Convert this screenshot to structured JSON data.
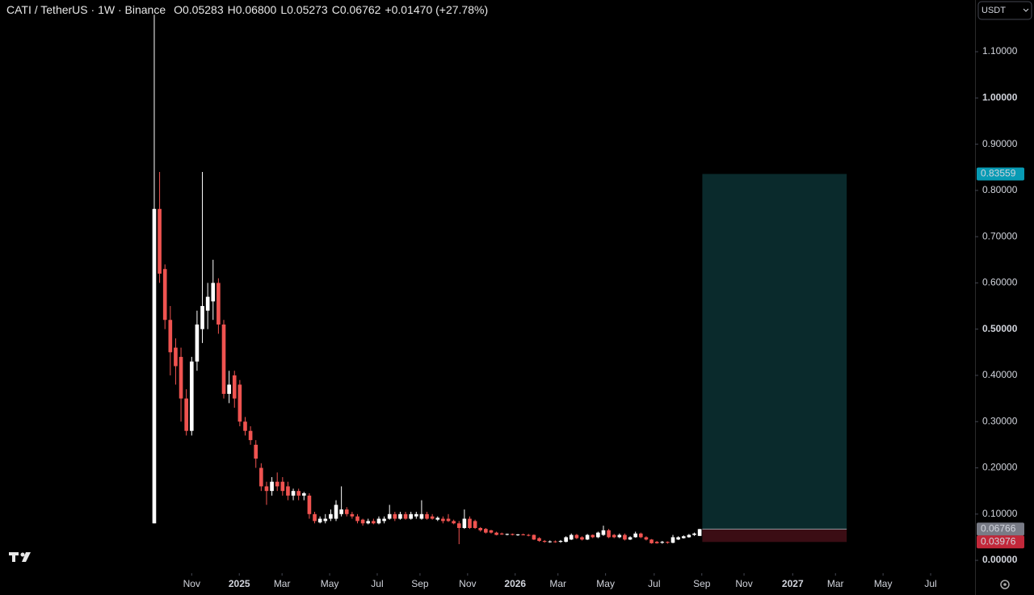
{
  "chart_data": {
    "type": "candlestick",
    "title": "CATI / TetherUS · 1W · Binance",
    "ohlc": [
      "O0.05283",
      "H0.06800",
      "L0.05273",
      "C0.06762",
      "+0.01470 (+27.78%)"
    ],
    "currency": "USDT",
    "up_color": "#ffffff",
    "down_color": "#ef5350",
    "ylim": [
      -0.0278,
      1.2118
    ],
    "yticks": [
      {
        "value": 0,
        "label": "0.00000"
      },
      {
        "value": 0.1,
        "label": "0.10000"
      },
      {
        "value": 0.2,
        "label": "0.20000"
      },
      {
        "value": 0.3,
        "label": "0.30000"
      },
      {
        "value": 0.4,
        "label": "0.40000"
      },
      {
        "value": 0.5,
        "label": "0.50000"
      },
      {
        "value": 0.6,
        "label": "0.60000"
      },
      {
        "value": 0.7,
        "label": "0.70000"
      },
      {
        "value": 0.8,
        "label": "0.80000"
      },
      {
        "value": 0.9,
        "label": "0.90000"
      },
      {
        "value": 1,
        "label": "1.00000"
      },
      {
        "value": 1.1,
        "label": "1.10000"
      }
    ],
    "xlim": [
      -28.85,
      153.5
    ],
    "xticks": [
      {
        "value": 7,
        "label": "Nov"
      },
      {
        "value": 15.9,
        "label": "2025"
      },
      {
        "value": 23.9,
        "label": "Mar"
      },
      {
        "value": 32.8,
        "label": "May"
      },
      {
        "value": 41.7,
        "label": "Jul"
      },
      {
        "value": 49.7,
        "label": "Sep"
      },
      {
        "value": 58.6,
        "label": "Nov"
      },
      {
        "value": 67.5,
        "label": "2026"
      },
      {
        "value": 75.5,
        "label": "Mar"
      },
      {
        "value": 84.4,
        "label": "May"
      },
      {
        "value": 93.5,
        "label": "Jul"
      },
      {
        "value": 102.4,
        "label": "Sep"
      },
      {
        "value": 110.3,
        "label": "Nov"
      },
      {
        "value": 119.4,
        "label": "2027"
      },
      {
        "value": 127.4,
        "label": "Mar"
      },
      {
        "value": 136.3,
        "label": "May"
      },
      {
        "value": 145.2,
        "label": "Jul"
      }
    ],
    "candles": [
      [
        0.08,
        1.18,
        0.08,
        0.76
      ],
      [
        0.76,
        0.84,
        0.6,
        0.62
      ],
      [
        0.63,
        0.64,
        0.5,
        0.52
      ],
      [
        0.52,
        0.55,
        0.4,
        0.45
      ],
      [
        0.46,
        0.48,
        0.38,
        0.42
      ],
      [
        0.44,
        0.46,
        0.3,
        0.35
      ],
      [
        0.35,
        0.37,
        0.27,
        0.28
      ],
      [
        0.28,
        0.44,
        0.27,
        0.43
      ],
      [
        0.43,
        0.54,
        0.41,
        0.51
      ],
      [
        0.5,
        0.84,
        0.47,
        0.55
      ],
      [
        0.54,
        0.6,
        0.5,
        0.57
      ],
      [
        0.56,
        0.65,
        0.52,
        0.6
      ],
      [
        0.6,
        0.61,
        0.49,
        0.51
      ],
      [
        0.51,
        0.52,
        0.35,
        0.36
      ],
      [
        0.36,
        0.41,
        0.34,
        0.38
      ],
      [
        0.4,
        0.41,
        0.33,
        0.35
      ],
      [
        0.38,
        0.39,
        0.29,
        0.3
      ],
      [
        0.3,
        0.31,
        0.27,
        0.28
      ],
      [
        0.28,
        0.29,
        0.25,
        0.26
      ],
      [
        0.25,
        0.26,
        0.2,
        0.22
      ],
      [
        0.2,
        0.21,
        0.15,
        0.16
      ],
      [
        0.16,
        0.17,
        0.12,
        0.15
      ],
      [
        0.15,
        0.18,
        0.14,
        0.17
      ],
      [
        0.17,
        0.19,
        0.15,
        0.16
      ],
      [
        0.17,
        0.18,
        0.14,
        0.15
      ],
      [
        0.16,
        0.17,
        0.13,
        0.14
      ],
      [
        0.14,
        0.155,
        0.13,
        0.15
      ],
      [
        0.15,
        0.155,
        0.13,
        0.14
      ],
      [
        0.14,
        0.148,
        0.13,
        0.145
      ],
      [
        0.14,
        0.145,
        0.09,
        0.1
      ],
      [
        0.1,
        0.105,
        0.08,
        0.085
      ],
      [
        0.082,
        0.095,
        0.08,
        0.09
      ],
      [
        0.085,
        0.1,
        0.08,
        0.09
      ],
      [
        0.09,
        0.11,
        0.085,
        0.1
      ],
      [
        0.09,
        0.13,
        0.085,
        0.12
      ],
      [
        0.1,
        0.16,
        0.095,
        0.11
      ],
      [
        0.11,
        0.115,
        0.095,
        0.1
      ],
      [
        0.1,
        0.105,
        0.09,
        0.095
      ],
      [
        0.095,
        0.1,
        0.08,
        0.085
      ],
      [
        0.088,
        0.09,
        0.075,
        0.08
      ],
      [
        0.08,
        0.09,
        0.078,
        0.085
      ],
      [
        0.085,
        0.09,
        0.078,
        0.08
      ],
      [
        0.08,
        0.095,
        0.078,
        0.09
      ],
      [
        0.085,
        0.095,
        0.08,
        0.09
      ],
      [
        0.09,
        0.12,
        0.088,
        0.1
      ],
      [
        0.1,
        0.105,
        0.085,
        0.09
      ],
      [
        0.09,
        0.105,
        0.088,
        0.1
      ],
      [
        0.1,
        0.105,
        0.088,
        0.09
      ],
      [
        0.09,
        0.105,
        0.088,
        0.1
      ],
      [
        0.095,
        0.105,
        0.09,
        0.1
      ],
      [
        0.09,
        0.13,
        0.088,
        0.1
      ],
      [
        0.1,
        0.105,
        0.088,
        0.09
      ],
      [
        0.095,
        0.1,
        0.088,
        0.09
      ],
      [
        0.088,
        0.095,
        0.085,
        0.092
      ],
      [
        0.09,
        0.095,
        0.08,
        0.085
      ],
      [
        0.09,
        0.1,
        0.083,
        0.085
      ],
      [
        0.085,
        0.088,
        0.078,
        0.08
      ],
      [
        0.08,
        0.085,
        0.035,
        0.07
      ],
      [
        0.07,
        0.11,
        0.068,
        0.09
      ],
      [
        0.09,
        0.095,
        0.068,
        0.07
      ],
      [
        0.085,
        0.088,
        0.068,
        0.07
      ],
      [
        0.07,
        0.072,
        0.062,
        0.065
      ],
      [
        0.068,
        0.07,
        0.058,
        0.06
      ],
      [
        0.065,
        0.066,
        0.058,
        0.06
      ],
      [
        0.06,
        0.062,
        0.054,
        0.055
      ],
      [
        0.058,
        0.06,
        0.055,
        0.056
      ],
      [
        0.056,
        0.058,
        0.054,
        0.057
      ],
      [
        0.057,
        0.058,
        0.054,
        0.055
      ],
      [
        0.055,
        0.057,
        0.053,
        0.056
      ],
      [
        0.056,
        0.058,
        0.054,
        0.055
      ],
      [
        0.055,
        0.057,
        0.052,
        0.054
      ],
      [
        0.055,
        0.056,
        0.044,
        0.045
      ],
      [
        0.048,
        0.05,
        0.04,
        0.042
      ],
      [
        0.042,
        0.044,
        0.038,
        0.04
      ],
      [
        0.04,
        0.043,
        0.038,
        0.041
      ],
      [
        0.041,
        0.043,
        0.038,
        0.04
      ],
      [
        0.04,
        0.044,
        0.038,
        0.042
      ],
      [
        0.04,
        0.052,
        0.039,
        0.05
      ],
      [
        0.045,
        0.058,
        0.044,
        0.055
      ],
      [
        0.055,
        0.057,
        0.046,
        0.048
      ],
      [
        0.05,
        0.052,
        0.043,
        0.045
      ],
      [
        0.045,
        0.057,
        0.044,
        0.055
      ],
      [
        0.055,
        0.056,
        0.048,
        0.05
      ],
      [
        0.05,
        0.062,
        0.048,
        0.06
      ],
      [
        0.055,
        0.075,
        0.053,
        0.065
      ],
      [
        0.065,
        0.068,
        0.048,
        0.05
      ],
      [
        0.055,
        0.057,
        0.048,
        0.05
      ],
      [
        0.05,
        0.058,
        0.048,
        0.055
      ],
      [
        0.055,
        0.058,
        0.043,
        0.045
      ],
      [
        0.045,
        0.052,
        0.044,
        0.05
      ],
      [
        0.05,
        0.062,
        0.049,
        0.058
      ],
      [
        0.058,
        0.06,
        0.048,
        0.05
      ],
      [
        0.05,
        0.052,
        0.043,
        0.045
      ],
      [
        0.045,
        0.046,
        0.036,
        0.037
      ],
      [
        0.04,
        0.042,
        0.036,
        0.037
      ],
      [
        0.038,
        0.042,
        0.036,
        0.04
      ],
      [
        0.04,
        0.041,
        0.036,
        0.038
      ],
      [
        0.038,
        0.055,
        0.037,
        0.05
      ],
      [
        0.045,
        0.052,
        0.044,
        0.05
      ],
      [
        0.048,
        0.054,
        0.047,
        0.052
      ],
      [
        0.05,
        0.057,
        0.049,
        0.055
      ],
      [
        0.055,
        0.06,
        0.053,
        0.058
      ],
      [
        0.05283,
        0.068,
        0.05273,
        0.06762
      ]
    ],
    "position": {
      "x_range": [
        102.5,
        129.5
      ],
      "target": 0.83559,
      "entry": 0.06766,
      "stop": 0.03976,
      "target_color": "#0a2a2c",
      "stop_color": "#3b0d14"
    },
    "price_labels": [
      {
        "value": 0.83559,
        "label": "0.83559",
        "color": "#089bb5"
      },
      {
        "value": 0.06766,
        "label": "0.06766",
        "color": "#787b86"
      },
      {
        "value": 0.03976,
        "label": "0.03976",
        "color": "#c2283a"
      }
    ]
  }
}
